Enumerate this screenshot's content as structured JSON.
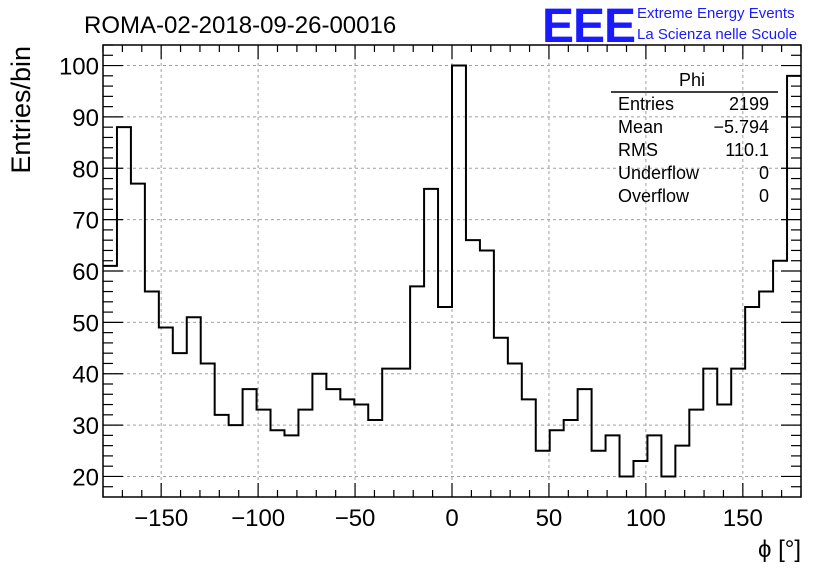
{
  "chart_data": {
    "type": "bar",
    "histogram": true,
    "title": "ROMA-02-2018-09-26-00016",
    "xlabel": "ϕ [°]",
    "ylabel": "Entries/bin",
    "xlim": [
      -180,
      180
    ],
    "ylim": [
      16,
      104
    ],
    "bin_edges_start": -180,
    "bin_width": 7.2,
    "values": [
      61,
      88,
      77,
      56,
      49,
      44,
      51,
      42,
      32,
      30,
      37,
      33,
      29,
      28,
      33,
      40,
      37,
      35,
      34,
      31,
      41,
      41,
      57,
      76,
      53,
      100,
      66,
      64,
      47,
      42,
      35,
      25,
      29,
      31,
      37,
      25,
      28,
      20,
      23,
      28,
      20,
      26,
      33,
      41,
      34,
      41,
      53,
      56,
      62,
      98
    ],
    "x_ticks": [
      "−150",
      "−100",
      "−50",
      "0",
      "50",
      "100",
      "150"
    ],
    "x_tick_values": [
      -150,
      -100,
      -50,
      0,
      50,
      100,
      150
    ],
    "y_ticks": [
      "20",
      "30",
      "40",
      "50",
      "60",
      "70",
      "80",
      "90",
      "100"
    ],
    "y_tick_values": [
      20,
      30,
      40,
      50,
      60,
      70,
      80,
      90,
      100
    ],
    "grid": true,
    "stats_box": {
      "title": "Phi",
      "rows": [
        {
          "label": "Entries",
          "value": "2199"
        },
        {
          "label": "Mean",
          "value": "−5.794"
        },
        {
          "label": "RMS",
          "value": "110.1"
        },
        {
          "label": "Underflow",
          "value": "0"
        },
        {
          "label": "Overflow",
          "value": "0"
        }
      ]
    }
  },
  "logo": {
    "mark": "EEE",
    "line1": "Extreme Energy Events",
    "line2": "La Scienza nelle Scuole",
    "color": "#1a1aff"
  }
}
